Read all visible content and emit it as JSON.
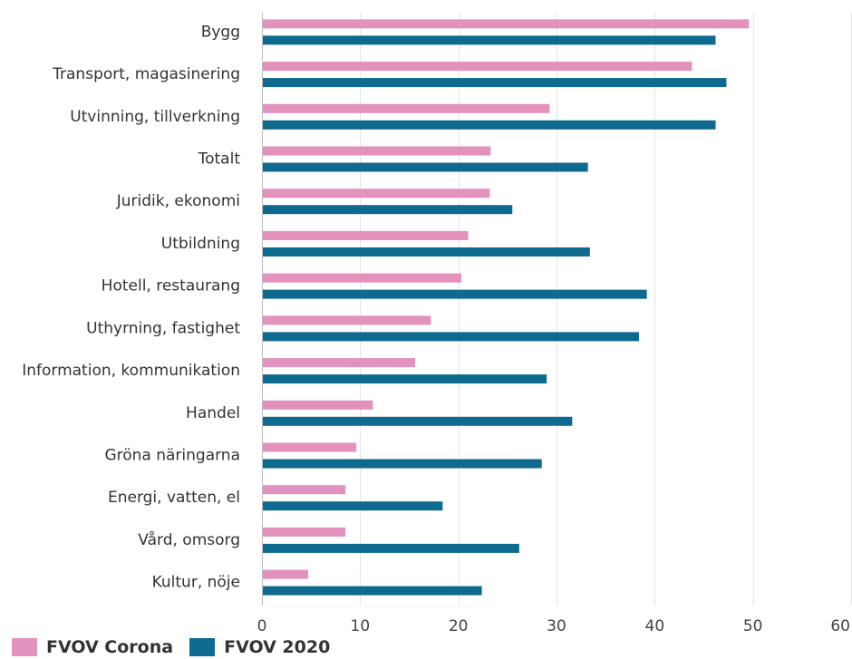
{
  "chart_data": {
    "type": "bar",
    "orientation": "horizontal",
    "categories": [
      "Bygg",
      "Transport, magasinering",
      "Utvinning, tillverkning",
      "Totalt",
      "Juridik, ekonomi",
      "Utbildning",
      "Hotell, restaurang",
      "Uthyrning, fastighet",
      "Information, kommunikation",
      "Handel",
      "Gröna näringarna",
      "Energi, vatten, el",
      "Vård, omsorg",
      "Kultur, nöje"
    ],
    "series": [
      {
        "name": "FVOV Corona",
        "color": "#e391bd",
        "values": [
          49.6,
          43.8,
          29.3,
          23.3,
          23.2,
          21.0,
          20.3,
          17.2,
          15.6,
          11.3,
          9.6,
          8.5,
          8.5,
          4.7
        ]
      },
      {
        "name": "FVOV 2020",
        "color": "#0e6a8e",
        "values": [
          46.2,
          47.3,
          46.2,
          33.2,
          25.5,
          33.4,
          39.2,
          38.4,
          29.0,
          31.6,
          28.5,
          18.4,
          26.2,
          22.4
        ]
      }
    ],
    "xlim": [
      0,
      60
    ],
    "xticks": [
      0,
      10,
      20,
      30,
      40,
      50,
      60
    ],
    "xlabel": "",
    "ylabel": "",
    "title": "",
    "grid": true,
    "legend_position": "bottom-left"
  }
}
